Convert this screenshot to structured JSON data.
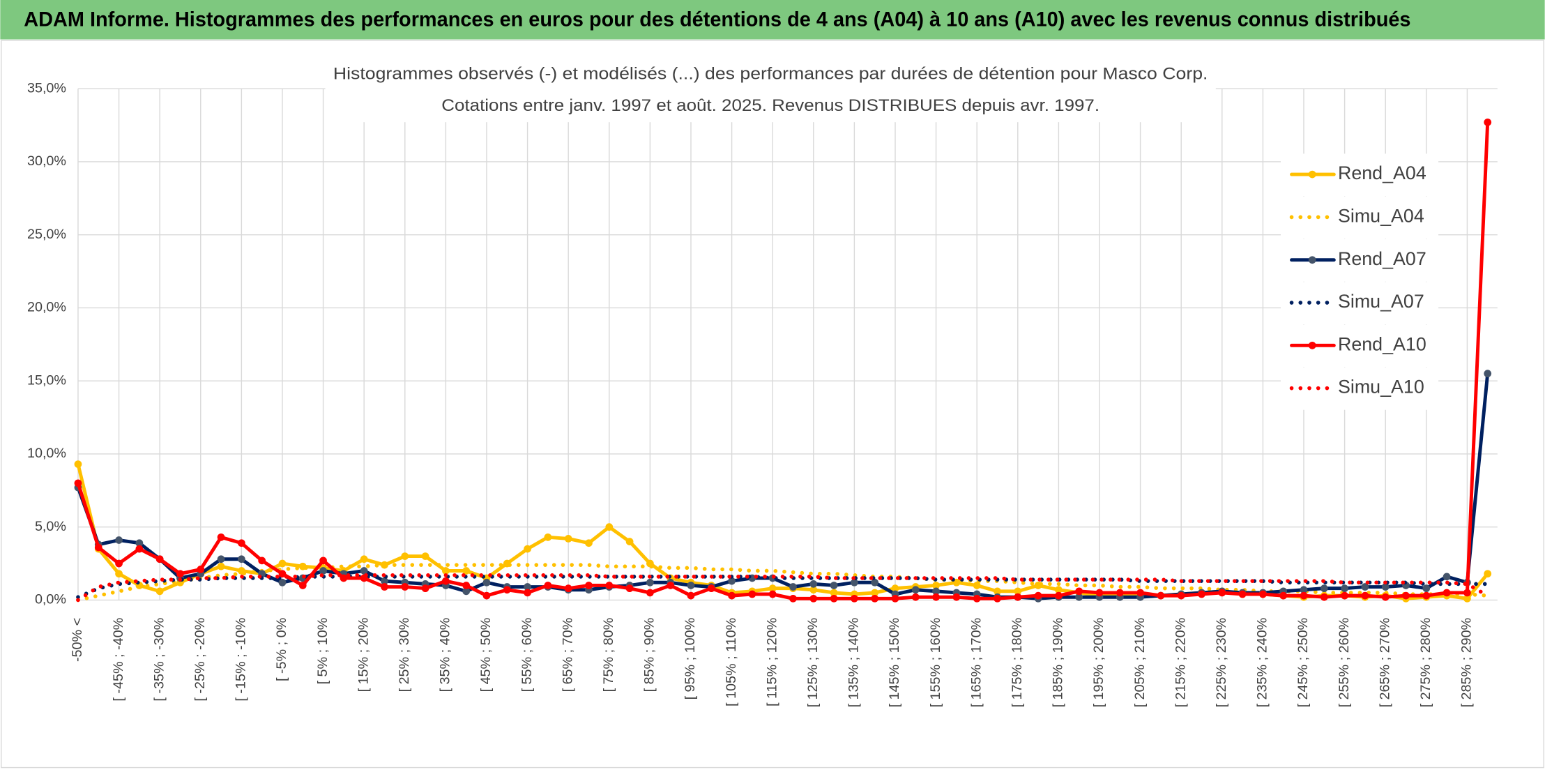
{
  "header": {
    "title": "ADAM Informe. Histogrammes des performances en euros pour des détentions de 4 ans (A04) à 10 ans (A10) avec les revenus connus distribués"
  },
  "chart_data": {
    "type": "line",
    "title": "Histogrammes observés (-) et modélisés (...) des performances par durées de détention pour Masco Corp.",
    "subtitle": "Cotations entre janv. 1997 et août. 2025. Revenus DISTRIBUES depuis avr. 1997.",
    "categories": [
      "-50% <",
      null,
      "[ -45% ; -40%",
      null,
      "[ -35% ; -30%",
      null,
      "[ -25% ; -20%",
      null,
      "[ -15% ; -10%",
      null,
      "[ -5% ; 0%",
      null,
      "[ 5% ; 10%",
      null,
      "[ 15% ; 20%",
      null,
      "[ 25% ; 30%",
      null,
      "[ 35% ; 40%",
      null,
      "[ 45% ; 50%",
      null,
      "[ 55% ; 60%",
      null,
      "[ 65% ; 70%",
      null,
      "[ 75% ; 80%",
      null,
      "[ 85% ; 90%",
      null,
      "[ 95% ; 100%",
      null,
      "[ 105% ; 110%",
      null,
      "[ 115% ; 120%",
      null,
      "[ 125% ; 130%",
      null,
      "[ 135% ; 140%",
      null,
      "[ 145% ; 150%",
      null,
      "[ 155% ; 160%",
      null,
      "[ 165% ; 170%",
      null,
      "[ 175% ; 180%",
      null,
      "[ 185% ; 190%",
      null,
      "[ 195% ; 200%",
      null,
      "[ 205% ; 210%",
      null,
      "[ 215% ; 220%",
      null,
      "[ 225% ; 230%",
      null,
      "[ 235% ; 240%",
      null,
      "[ 245% ; 250%",
      null,
      "[ 255% ; 260%",
      null,
      "[ 265% ; 270%",
      null,
      "[ 275% ; 280%",
      null,
      "[ 285% ; 290%",
      null
    ],
    "ylim": [
      0,
      35
    ],
    "yticks": [
      {
        "value": 0,
        "label": "0,0%"
      },
      {
        "value": 5,
        "label": "5,0%"
      },
      {
        "value": 10,
        "label": "10,0%"
      },
      {
        "value": 15,
        "label": "15,0%"
      },
      {
        "value": 20,
        "label": "20,0%"
      },
      {
        "value": 25,
        "label": "25,0%"
      },
      {
        "value": 30,
        "label": "30,0%"
      },
      {
        "value": 35,
        "label": "35,0%"
      }
    ],
    "grid": true,
    "legend": "right",
    "series": [
      {
        "name": "Rend_A04",
        "color": "#ffc000",
        "style": "solid",
        "values": [
          9.3,
          3.5,
          1.8,
          1.0,
          0.6,
          1.2,
          1.8,
          2.3,
          2.0,
          1.8,
          2.5,
          2.3,
          2.2,
          2.0,
          2.8,
          2.4,
          3.0,
          3.0,
          2.0,
          2.0,
          1.5,
          2.5,
          3.5,
          4.3,
          4.2,
          3.9,
          5.0,
          4.0,
          2.5,
          1.5,
          1.2,
          1.0,
          0.5,
          0.6,
          0.8,
          0.8,
          0.7,
          0.5,
          0.4,
          0.5,
          0.8,
          0.9,
          1.0,
          1.2,
          1.0,
          0.6,
          0.6,
          1.0,
          0.7,
          0.5,
          0.3,
          0.3,
          0.4,
          0.3,
          0.4,
          0.5,
          0.6,
          0.4,
          0.4,
          0.3,
          0.2,
          0.3,
          0.3,
          0.2,
          0.3,
          0.1,
          0.2,
          0.3,
          0.1,
          1.8
        ]
      },
      {
        "name": "Simu_A04",
        "color": "#ffc000",
        "style": "dotted",
        "values": [
          0.0,
          0.3,
          0.6,
          0.9,
          1.1,
          1.3,
          1.5,
          1.7,
          1.8,
          2.0,
          2.1,
          2.2,
          2.2,
          2.3,
          2.3,
          2.4,
          2.4,
          2.4,
          2.4,
          2.4,
          2.4,
          2.4,
          2.4,
          2.4,
          2.4,
          2.4,
          2.3,
          2.3,
          2.3,
          2.2,
          2.2,
          2.1,
          2.1,
          2.0,
          2.0,
          1.9,
          1.8,
          1.8,
          1.7,
          1.6,
          1.6,
          1.5,
          1.4,
          1.4,
          1.3,
          1.3,
          1.2,
          1.1,
          1.1,
          1.0,
          1.0,
          0.9,
          0.9,
          0.8,
          0.8,
          0.8,
          0.7,
          0.7,
          0.6,
          0.6,
          0.6,
          0.5,
          0.5,
          0.5,
          0.5,
          0.4,
          0.4,
          0.4,
          0.4,
          0.3
        ]
      },
      {
        "name": "Rend_A07",
        "color": "#002060",
        "style": "solid",
        "values": [
          7.7,
          3.8,
          4.1,
          3.9,
          2.8,
          1.5,
          1.8,
          2.8,
          2.8,
          1.8,
          1.2,
          1.5,
          2.0,
          1.8,
          2.0,
          1.3,
          1.2,
          1.1,
          1.0,
          0.6,
          1.2,
          0.9,
          0.9,
          0.9,
          0.7,
          0.7,
          0.9,
          1.0,
          1.2,
          1.2,
          1.0,
          0.9,
          1.3,
          1.5,
          1.5,
          0.9,
          1.1,
          1.0,
          1.2,
          1.2,
          0.4,
          0.7,
          0.6,
          0.5,
          0.4,
          0.2,
          0.2,
          0.1,
          0.2,
          0.2,
          0.2,
          0.2,
          0.2,
          0.3,
          0.4,
          0.5,
          0.6,
          0.5,
          0.5,
          0.6,
          0.7,
          0.8,
          0.8,
          0.9,
          0.9,
          1.0,
          0.8,
          1.6,
          1.2,
          15.5
        ]
      },
      {
        "name": "Simu_A07",
        "color": "#002060",
        "style": "dotted",
        "values": [
          0.2,
          0.8,
          1.1,
          1.2,
          1.3,
          1.4,
          1.4,
          1.5,
          1.5,
          1.5,
          1.5,
          1.6,
          1.6,
          1.6,
          1.6,
          1.6,
          1.6,
          1.6,
          1.6,
          1.6,
          1.6,
          1.6,
          1.6,
          1.6,
          1.6,
          1.6,
          1.6,
          1.6,
          1.6,
          1.6,
          1.6,
          1.6,
          1.6,
          1.6,
          1.5,
          1.5,
          1.5,
          1.5,
          1.5,
          1.5,
          1.5,
          1.5,
          1.4,
          1.4,
          1.4,
          1.4,
          1.4,
          1.4,
          1.4,
          1.4,
          1.4,
          1.4,
          1.3,
          1.3,
          1.3,
          1.3,
          1.3,
          1.3,
          1.3,
          1.2,
          1.2,
          1.2,
          1.2,
          1.2,
          1.2,
          1.2,
          1.1,
          1.1,
          1.1,
          1.1
        ]
      },
      {
        "name": "Rend_A10",
        "color": "#ff0000",
        "style": "solid",
        "values": [
          8.0,
          3.6,
          2.5,
          3.5,
          2.8,
          1.8,
          2.1,
          4.3,
          3.9,
          2.7,
          1.8,
          1.0,
          2.7,
          1.5,
          1.5,
          0.9,
          0.9,
          0.8,
          1.3,
          1.0,
          0.3,
          0.7,
          0.5,
          1.0,
          0.8,
          1.0,
          1.0,
          0.8,
          0.5,
          1.0,
          0.3,
          0.8,
          0.3,
          0.4,
          0.4,
          0.1,
          0.1,
          0.1,
          0.1,
          0.1,
          0.1,
          0.2,
          0.2,
          0.2,
          0.1,
          0.1,
          0.2,
          0.3,
          0.3,
          0.6,
          0.5,
          0.5,
          0.5,
          0.3,
          0.3,
          0.4,
          0.5,
          0.4,
          0.4,
          0.3,
          0.3,
          0.2,
          0.3,
          0.3,
          0.2,
          0.3,
          0.3,
          0.5,
          0.5,
          32.7
        ]
      },
      {
        "name": "Simu_A10",
        "color": "#ff0000",
        "style": "dotted",
        "values": [
          0.0,
          0.9,
          1.2,
          1.3,
          1.4,
          1.4,
          1.5,
          1.5,
          1.6,
          1.6,
          1.6,
          1.6,
          1.7,
          1.7,
          1.7,
          1.7,
          1.7,
          1.7,
          1.7,
          1.7,
          1.7,
          1.7,
          1.7,
          1.7,
          1.7,
          1.7,
          1.6,
          1.6,
          1.6,
          1.6,
          1.6,
          1.6,
          1.6,
          1.6,
          1.6,
          1.6,
          1.6,
          1.5,
          1.5,
          1.5,
          1.5,
          1.5,
          1.5,
          1.5,
          1.5,
          1.5,
          1.4,
          1.4,
          1.4,
          1.4,
          1.4,
          1.4,
          1.4,
          1.4,
          1.3,
          1.3,
          1.3,
          1.3,
          1.3,
          1.3,
          1.3,
          1.3,
          1.2,
          1.2,
          1.2,
          1.2,
          1.2,
          1.2,
          1.1,
          0.3
        ]
      }
    ]
  }
}
